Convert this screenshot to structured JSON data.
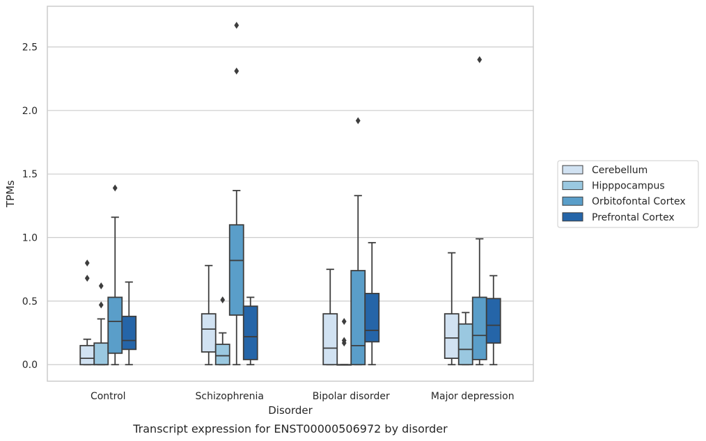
{
  "caption": "Transcript expression for ENST00000506972 by disorder",
  "chart_data": {
    "type": "box",
    "xlabel": "Disorder",
    "ylabel": "TPMs",
    "ylim": [
      -0.13,
      2.82
    ],
    "yticks": [
      0.0,
      0.5,
      1.0,
      1.5,
      2.0,
      2.5
    ],
    "ytick_labels": [
      "0.0",
      "0.5",
      "1.0",
      "1.5",
      "2.0",
      "2.5"
    ],
    "grid": "horizontal",
    "legend_position": "right",
    "categories": [
      "Control",
      "Schizophrenia",
      "Bipolar disorder",
      "Major depression"
    ],
    "series": [
      {
        "name": "Cerebellum",
        "color": "#d1e2f2",
        "boxes": [
          {
            "whislo": 0.0,
            "q1": 0.0,
            "med": 0.05,
            "q3": 0.15,
            "whishi": 0.2,
            "fliers": [
              0.68,
              0.8
            ]
          },
          {
            "whislo": 0.0,
            "q1": 0.1,
            "med": 0.28,
            "q3": 0.4,
            "whishi": 0.78,
            "fliers": []
          },
          {
            "whislo": 0.0,
            "q1": 0.0,
            "med": 0.13,
            "q3": 0.4,
            "whishi": 0.75,
            "fliers": []
          },
          {
            "whislo": 0.0,
            "q1": 0.05,
            "med": 0.21,
            "q3": 0.4,
            "whishi": 0.88,
            "fliers": []
          }
        ]
      },
      {
        "name": "Hipppocampus",
        "color": "#9ac8e0",
        "boxes": [
          {
            "whislo": 0.0,
            "q1": 0.0,
            "med": 0.0,
            "q3": 0.17,
            "whishi": 0.36,
            "fliers": [
              0.47,
              0.62
            ]
          },
          {
            "whislo": 0.0,
            "q1": 0.0,
            "med": 0.07,
            "q3": 0.16,
            "whishi": 0.25,
            "fliers": [
              0.51
            ]
          },
          {
            "whislo": 0.0,
            "q1": 0.0,
            "med": 0.0,
            "q3": 0.0,
            "whishi": 0.0,
            "fliers": [
              0.17,
              0.19,
              0.34
            ]
          },
          {
            "whislo": 0.0,
            "q1": 0.0,
            "med": 0.12,
            "q3": 0.32,
            "whishi": 0.41,
            "fliers": []
          }
        ]
      },
      {
        "name": "Orbitofontal Cortex",
        "color": "#5a9ec9",
        "boxes": [
          {
            "whislo": 0.0,
            "q1": 0.09,
            "med": 0.34,
            "q3": 0.53,
            "whishi": 1.16,
            "fliers": [
              1.39
            ]
          },
          {
            "whislo": 0.0,
            "q1": 0.39,
            "med": 0.82,
            "q3": 1.1,
            "whishi": 1.37,
            "fliers": [
              2.31,
              2.67
            ]
          },
          {
            "whislo": 0.0,
            "q1": 0.0,
            "med": 0.15,
            "q3": 0.74,
            "whishi": 1.33,
            "fliers": [
              1.92
            ]
          },
          {
            "whislo": 0.0,
            "q1": 0.04,
            "med": 0.23,
            "q3": 0.53,
            "whishi": 0.99,
            "fliers": [
              2.4
            ]
          }
        ]
      },
      {
        "name": "Prefrontal Cortex",
        "color": "#2565a8",
        "boxes": [
          {
            "whislo": 0.0,
            "q1": 0.12,
            "med": 0.19,
            "q3": 0.38,
            "whishi": 0.65,
            "fliers": []
          },
          {
            "whislo": 0.0,
            "q1": 0.04,
            "med": 0.22,
            "q3": 0.46,
            "whishi": 0.53,
            "fliers": []
          },
          {
            "whislo": 0.0,
            "q1": 0.18,
            "med": 0.27,
            "q3": 0.56,
            "whishi": 0.96,
            "fliers": []
          },
          {
            "whislo": 0.0,
            "q1": 0.17,
            "med": 0.31,
            "q3": 0.52,
            "whishi": 0.7,
            "fliers": []
          }
        ]
      }
    ]
  }
}
